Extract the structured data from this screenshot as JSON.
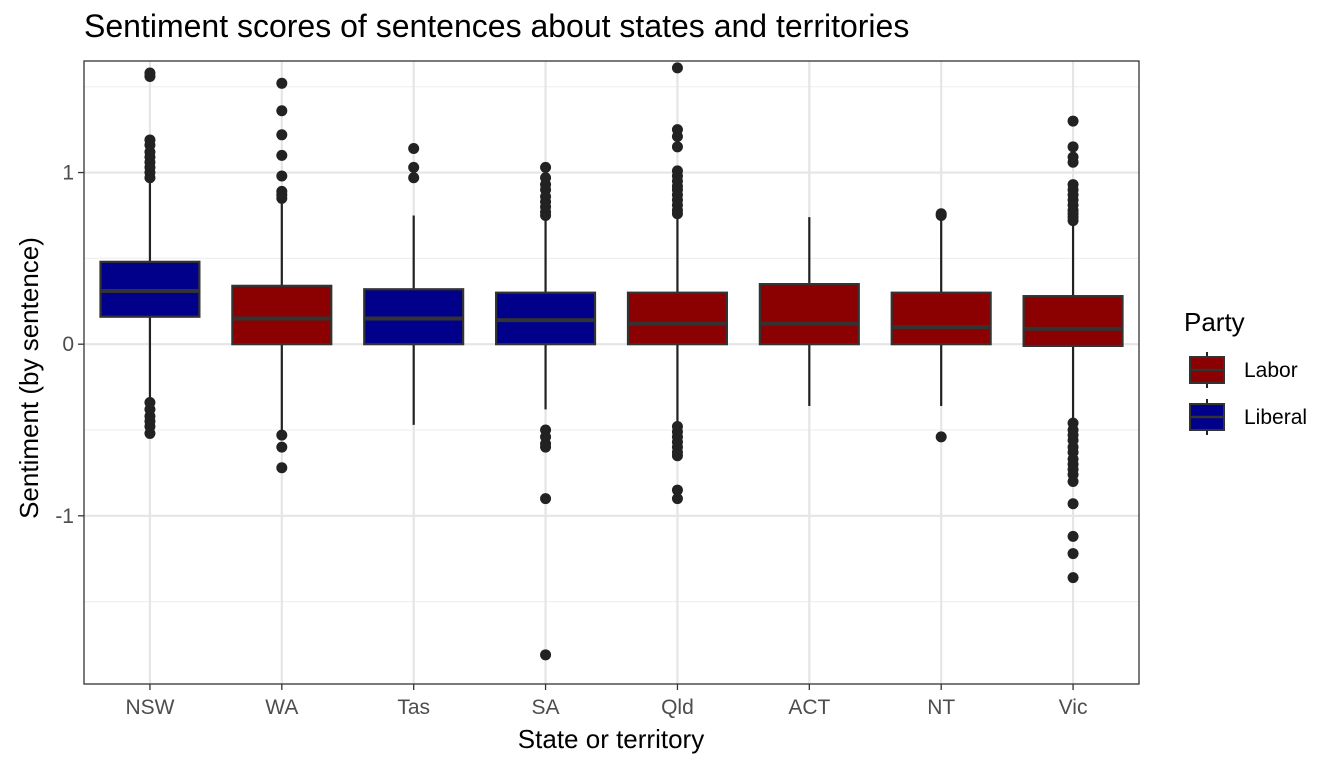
{
  "chart_data": {
    "type": "boxplot",
    "title": "Sentiment scores of sentences about states and territories",
    "xlabel": "State or territory",
    "ylabel": "Sentiment (by sentence)",
    "ylim": [
      -1.98,
      1.65
    ],
    "yticks": [
      1,
      0,
      -1
    ],
    "ytick_labels": [
      "1",
      "0",
      "-1"
    ],
    "grid": true,
    "legend": {
      "title": "Party",
      "position": "right",
      "entries": [
        {
          "name": "Labor",
          "color": "#8b0000"
        },
        {
          "name": "Liberal",
          "color": "#00008b"
        }
      ]
    },
    "categories": [
      "NSW",
      "WA",
      "Tas",
      "SA",
      "Qld",
      "ACT",
      "NT",
      "Vic"
    ],
    "boxes": [
      {
        "label": "NSW",
        "party": "Liberal",
        "q1": 0.16,
        "median": 0.31,
        "q3": 0.48,
        "whisker_low": -0.32,
        "whisker_high": 0.95,
        "outliers": [
          1.58,
          1.56,
          1.19,
          1.16,
          1.12,
          1.09,
          1.06,
          1.03,
          1.0,
          0.97,
          -0.34,
          -0.38,
          -0.42,
          -0.45,
          -0.48,
          -0.52
        ]
      },
      {
        "label": "WA",
        "party": "Labor",
        "q1": 0.0,
        "median": 0.15,
        "q3": 0.34,
        "whisker_low": -0.52,
        "whisker_high": 0.83,
        "outliers": [
          1.52,
          1.36,
          1.22,
          1.1,
          0.98,
          0.89,
          0.87,
          0.85,
          -0.53,
          -0.6,
          -0.72
        ]
      },
      {
        "label": "Tas",
        "party": "Liberal",
        "q1": 0.0,
        "median": 0.15,
        "q3": 0.32,
        "whisker_low": -0.47,
        "whisker_high": 0.75,
        "outliers": [
          1.14,
          1.03,
          0.97
        ]
      },
      {
        "label": "SA",
        "party": "Liberal",
        "q1": 0.0,
        "median": 0.14,
        "q3": 0.3,
        "whisker_low": -0.38,
        "whisker_high": 0.73,
        "outliers": [
          1.03,
          0.97,
          0.93,
          0.9,
          0.86,
          0.83,
          0.8,
          0.77,
          0.75,
          -0.5,
          -0.54,
          -0.58,
          -0.6,
          -0.9,
          -1.81
        ]
      },
      {
        "label": "Qld",
        "party": "Labor",
        "q1": 0.0,
        "median": 0.12,
        "q3": 0.3,
        "whisker_low": -0.46,
        "whisker_high": 0.74,
        "outliers": [
          1.61,
          1.25,
          1.21,
          1.15,
          1.01,
          0.98,
          0.95,
          0.92,
          0.9,
          0.87,
          0.84,
          0.81,
          0.78,
          0.76,
          -0.48,
          -0.51,
          -0.54,
          -0.57,
          -0.6,
          -0.63,
          -0.65,
          -0.85,
          -0.9
        ]
      },
      {
        "label": "ACT",
        "party": "Labor",
        "q1": 0.0,
        "median": 0.12,
        "q3": 0.35,
        "whisker_low": -0.36,
        "whisker_high": 0.74,
        "outliers": []
      },
      {
        "label": "NT",
        "party": "Labor",
        "q1": 0.0,
        "median": 0.1,
        "q3": 0.3,
        "whisker_low": -0.36,
        "whisker_high": 0.75,
        "outliers": [
          0.76,
          0.75,
          -0.54
        ]
      },
      {
        "label": "Vic",
        "party": "Labor",
        "q1": -0.01,
        "median": 0.09,
        "q3": 0.28,
        "whisker_low": -0.44,
        "whisker_high": 0.7,
        "outliers": [
          1.3,
          1.15,
          1.09,
          1.06,
          0.93,
          0.9,
          0.87,
          0.84,
          0.81,
          0.78,
          0.76,
          0.74,
          0.72,
          -0.46,
          -0.5,
          -0.53,
          -0.56,
          -0.6,
          -0.63,
          -0.67,
          -0.7,
          -0.73,
          -0.76,
          -0.8,
          -0.93,
          -1.12,
          -1.22,
          -1.36
        ]
      }
    ]
  }
}
